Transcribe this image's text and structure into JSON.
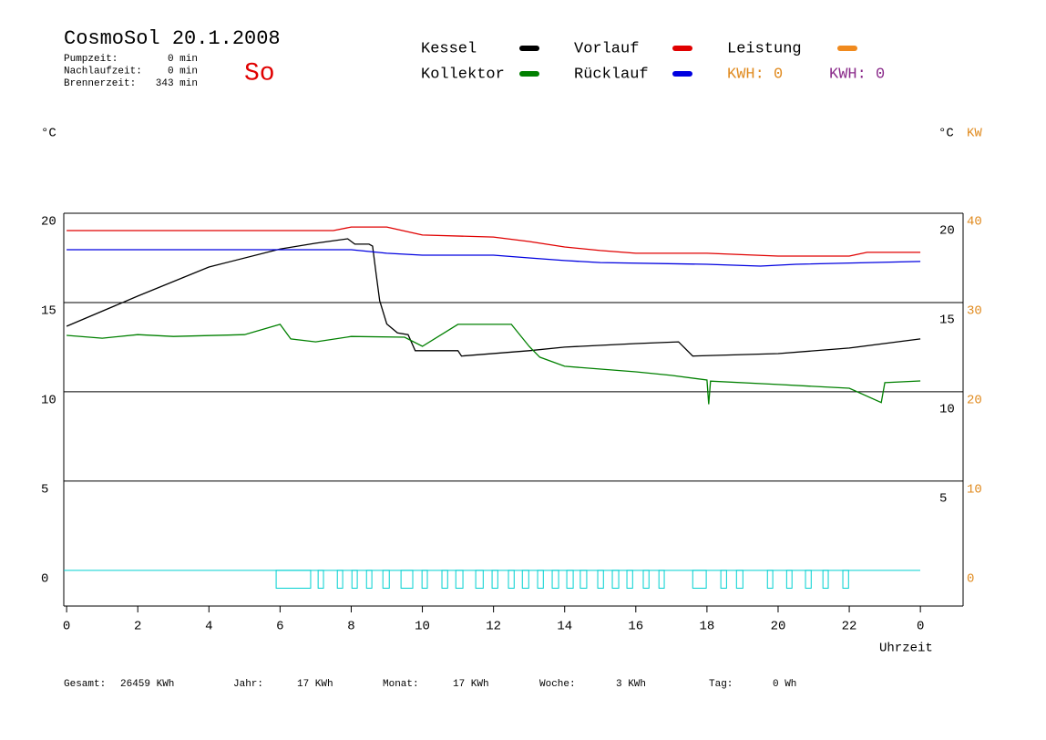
{
  "header": {
    "title": "CosmoSol 20.1.2008",
    "day": "So",
    "stats": [
      {
        "label": "Pumpzeit:",
        "value": "0 min"
      },
      {
        "label": "Nachlaufzeit:",
        "value": "0 min"
      },
      {
        "label": "Brennerzeit:",
        "value": "343 min"
      }
    ]
  },
  "chart_data": {
    "type": "line",
    "xlabel": "Uhrzeit",
    "ylabel": "°C",
    "y3label": "°C",
    "y2label": "KW",
    "xlim": [
      -0.08,
      25.2
    ],
    "xticks": [
      0,
      2,
      4,
      6,
      8,
      10,
      12,
      14,
      16,
      18,
      20,
      22,
      {
        "value": 24,
        "label": "0"
      }
    ],
    "ylim": [
      -2,
      20
    ],
    "yticks": [
      0,
      5,
      10,
      15,
      20
    ],
    "y3ticks": [
      5,
      10,
      15,
      20
    ],
    "y2lim": [
      -4,
      40
    ],
    "y2ticks": [
      0,
      10,
      20,
      30,
      40
    ],
    "y2color": "#e08a1e",
    "grid": true,
    "series": [
      {
        "name": "Kessel",
        "color": "#000000",
        "x": [
          0,
          2,
          4,
          6,
          7,
          7.9,
          8.1,
          8.5,
          8.6,
          8.7,
          8.8,
          9.0,
          9.3,
          9.6,
          9.8,
          11,
          11.1,
          13,
          14,
          16,
          17.2,
          17.6,
          20,
          22,
          24
        ],
        "values": [
          13.67,
          15.36,
          16.99,
          18.0,
          18.32,
          18.57,
          18.27,
          18.27,
          18.16,
          16.6,
          15.1,
          13.8,
          13.3,
          13.2,
          12.3,
          12.3,
          12.0,
          12.3,
          12.5,
          12.7,
          12.8,
          12.0,
          12.14,
          12.45,
          12.96
        ]
      },
      {
        "name": "Kollektor",
        "color": "#008000",
        "x": [
          0,
          1,
          2,
          3,
          4,
          5,
          6,
          6.3,
          7,
          8,
          9.5,
          10,
          11,
          12.5,
          13,
          13.3,
          14,
          16,
          17,
          18,
          18.05,
          18.1,
          20,
          22,
          22.9,
          23,
          24
        ],
        "values": [
          13.16,
          13.0,
          13.2,
          13.1,
          13.15,
          13.2,
          13.78,
          12.96,
          12.8,
          13.1,
          13.06,
          12.55,
          13.78,
          13.78,
          12.55,
          11.94,
          11.43,
          11.12,
          10.92,
          10.66,
          9.3,
          10.6,
          10.41,
          10.2,
          9.4,
          10.51,
          10.61
        ]
      },
      {
        "name": "Vorlauf",
        "color": "#e00000",
        "x": [
          0,
          7.5,
          8,
          9,
          10,
          12,
          13,
          14,
          15,
          16,
          18,
          20,
          22,
          22.5,
          24
        ],
        "values": [
          19.03,
          19.03,
          19.23,
          19.23,
          18.78,
          18.67,
          18.42,
          18.11,
          17.91,
          17.76,
          17.76,
          17.6,
          17.6,
          17.81,
          17.81
        ]
      },
      {
        "name": "Rücklauf",
        "color": "#0000e0",
        "x": [
          0,
          8,
          9,
          10,
          12,
          13,
          14,
          15,
          18,
          19.5,
          20.5,
          24
        ],
        "values": [
          17.96,
          17.96,
          17.76,
          17.65,
          17.65,
          17.5,
          17.35,
          17.24,
          17.14,
          17.04,
          17.14,
          17.3
        ]
      },
      {
        "name": "Leistung",
        "color": "#f08a1e",
        "x": [],
        "values": []
      }
    ],
    "pump": {
      "color": "#00d0d0",
      "level": -1,
      "pulses": [
        [
          5.89,
          6.86
        ],
        [
          7.07,
          7.22
        ],
        [
          7.61,
          7.76
        ],
        [
          8.02,
          8.17
        ],
        [
          8.43,
          8.58
        ],
        [
          8.89,
          9.07
        ],
        [
          9.4,
          9.73
        ],
        [
          9.99,
          10.14
        ],
        [
          10.55,
          10.71
        ],
        [
          10.94,
          11.14
        ],
        [
          11.5,
          11.71
        ],
        [
          11.96,
          12.12
        ],
        [
          12.42,
          12.58
        ],
        [
          12.81,
          12.99
        ],
        [
          13.24,
          13.4
        ],
        [
          13.65,
          13.83
        ],
        [
          14.06,
          14.24
        ],
        [
          14.44,
          14.62
        ],
        [
          14.93,
          15.09
        ],
        [
          15.34,
          15.52
        ],
        [
          15.75,
          15.91
        ],
        [
          16.21,
          16.37
        ],
        [
          16.65,
          16.8
        ],
        [
          17.6,
          17.98
        ],
        [
          18.39,
          18.55
        ],
        [
          18.83,
          19.01
        ],
        [
          19.7,
          19.85
        ],
        [
          20.24,
          20.39
        ],
        [
          20.77,
          20.93
        ],
        [
          21.26,
          21.41
        ],
        [
          21.82,
          21.98
        ]
      ]
    },
    "kwh": [
      {
        "text": "KWH: 0",
        "color": "#e08a1e"
      },
      {
        "text": "KWH: 0",
        "color": "#8a2a8a"
      }
    ]
  },
  "footer": [
    {
      "label": "Gesamt:",
      "value": "26459 KWh"
    },
    {
      "label": "Jahr:",
      "value": "17 KWh"
    },
    {
      "label": "Monat:",
      "value": "17 KWh"
    },
    {
      "label": "Woche:",
      "value": "3 KWh"
    },
    {
      "label": "Tag:",
      "value": "0 Wh"
    }
  ]
}
